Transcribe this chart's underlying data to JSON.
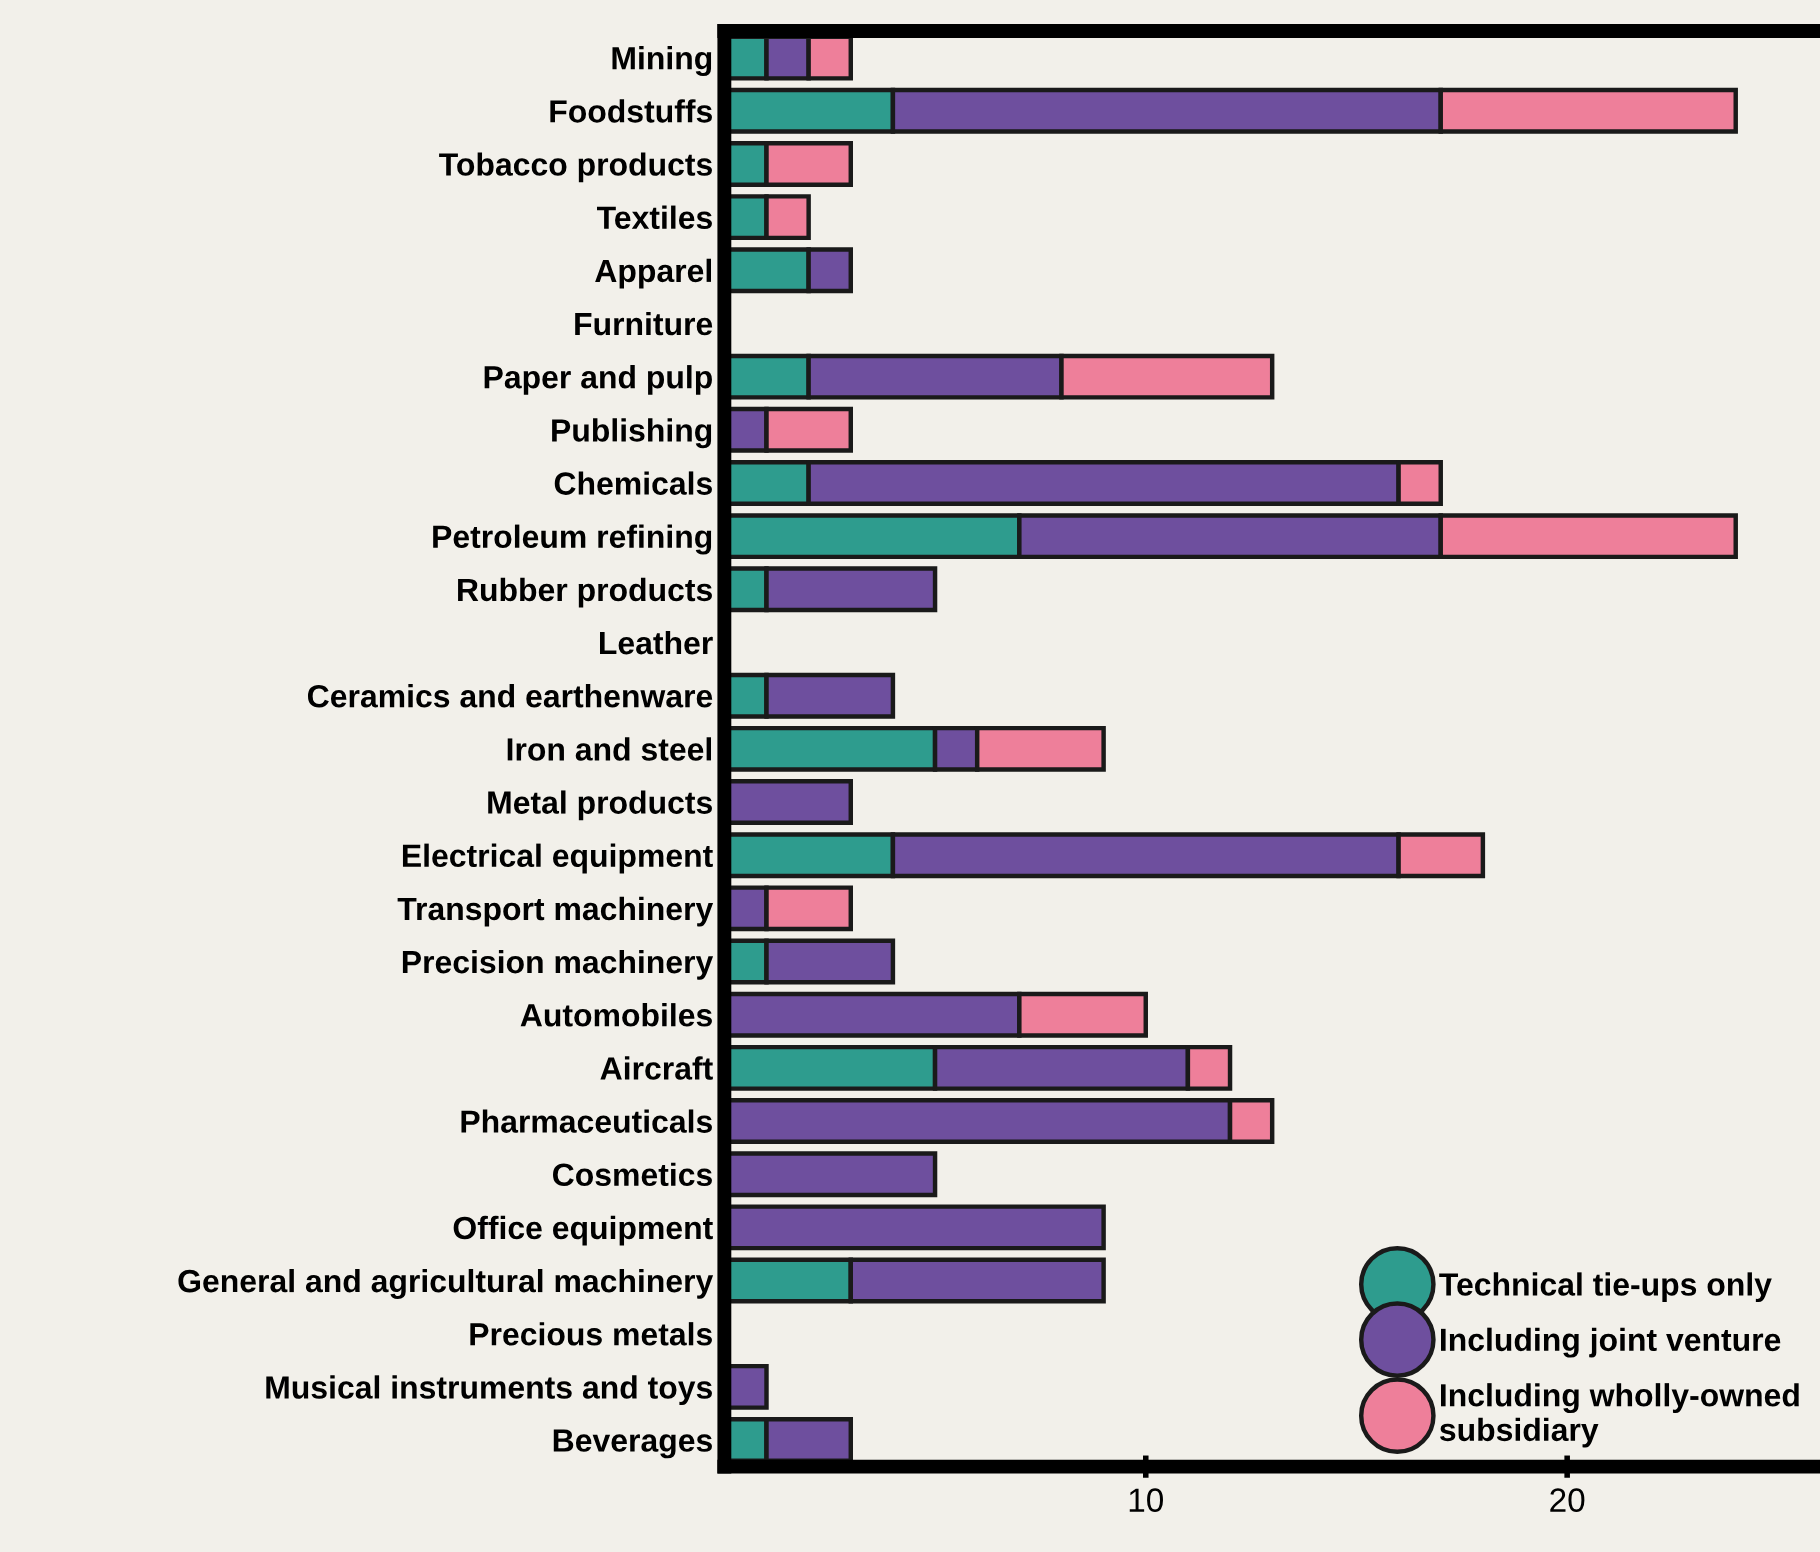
{
  "chart_data": {
    "type": "bar",
    "orientation": "horizontal",
    "stacked": true,
    "categories": [
      "Mining",
      "Foodstuffs",
      "Tobacco products",
      "Textiles",
      "Apparel",
      "Furniture",
      "Paper and pulp",
      "Publishing",
      "Chemicals",
      "Petroleum refining",
      "Rubber products",
      "Leather",
      "Ceramics and earthenware",
      "Iron and steel",
      "Metal products",
      "Electrical equipment",
      "Transport machinery",
      "Precision machinery",
      "Automobiles",
      "Aircraft",
      "Pharmaceuticals",
      "Cosmetics",
      "Office equipment",
      "General and agricultural machinery",
      "Precious metals",
      "Musical instruments and toys",
      "Beverages"
    ],
    "series": [
      {
        "name": "Technical tie-ups only",
        "color": "#2e9c8e",
        "values": [
          1,
          4,
          1,
          1,
          2,
          0,
          2,
          0,
          2,
          7,
          1,
          0,
          1,
          5,
          0,
          4,
          0,
          1,
          0,
          5,
          0,
          0,
          0,
          3,
          0,
          0,
          1
        ]
      },
      {
        "name": "Including joint venture",
        "color": "#6e4f9e",
        "values": [
          1,
          13,
          0,
          0,
          1,
          0,
          6,
          1,
          14,
          10,
          4,
          0,
          3,
          1,
          3,
          12,
          1,
          3,
          7,
          6,
          12,
          5,
          9,
          6,
          0,
          1,
          2
        ]
      },
      {
        "name": "Including wholly-owned subsidiary",
        "color": "#ee7f9a",
        "values": [
          1,
          7,
          2,
          1,
          0,
          0,
          5,
          2,
          1,
          7,
          0,
          0,
          0,
          3,
          0,
          2,
          2,
          0,
          3,
          1,
          1,
          0,
          0,
          0,
          0,
          0,
          0
        ]
      }
    ],
    "xlim": [
      0,
      26
    ],
    "xticks": [
      10,
      20
    ],
    "legend": "bottom right",
    "marker": "circle",
    "grid": false
  }
}
